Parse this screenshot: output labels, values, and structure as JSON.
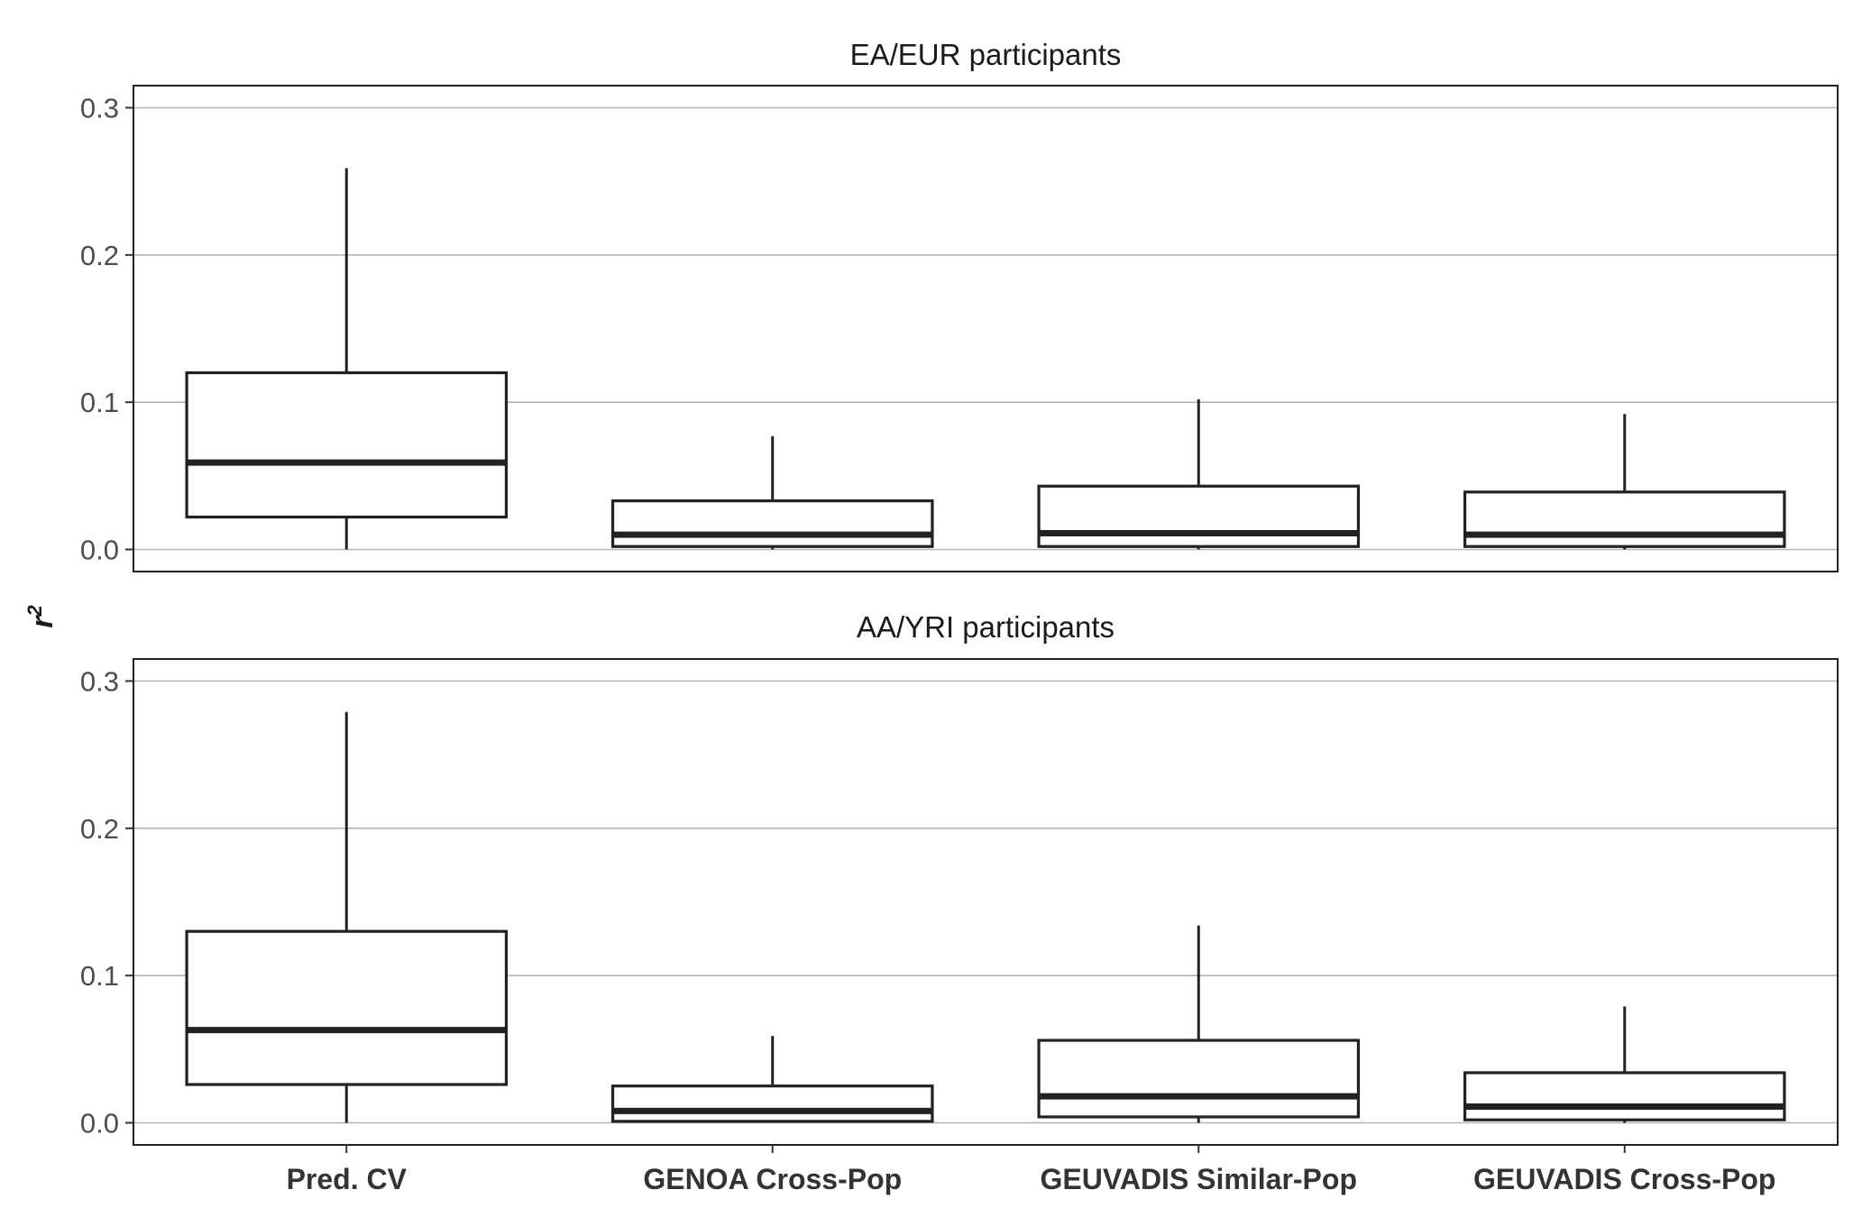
{
  "chart_data": {
    "type": "boxplot",
    "ylabel": "r",
    "ylabel_superscript": "2",
    "categories": [
      "Pred. CV",
      "GENOA Cross-Pop",
      "GEUVADIS Similar-Pop",
      "GEUVADIS Cross-Pop"
    ],
    "yticks": [
      "0.0",
      "0.1",
      "0.2",
      "0.3"
    ],
    "ylim": [
      -0.015,
      0.315
    ],
    "grid": "horizontal",
    "panels": [
      {
        "title": "EA/EUR participants",
        "boxes": [
          {
            "category": "Pred. CV",
            "min": 0.0,
            "q1": 0.022,
            "median": 0.059,
            "q3": 0.12,
            "max": 0.259
          },
          {
            "category": "GENOA Cross-Pop",
            "min": 0.0,
            "q1": 0.002,
            "median": 0.01,
            "q3": 0.033,
            "max": 0.077
          },
          {
            "category": "GEUVADIS Similar-Pop",
            "min": 0.0,
            "q1": 0.002,
            "median": 0.011,
            "q3": 0.043,
            "max": 0.102
          },
          {
            "category": "GEUVADIS Cross-Pop",
            "min": 0.0,
            "q1": 0.002,
            "median": 0.01,
            "q3": 0.039,
            "max": 0.092
          }
        ]
      },
      {
        "title": "AA/YRI participants",
        "boxes": [
          {
            "category": "Pred. CV",
            "min": 0.0,
            "q1": 0.026,
            "median": 0.063,
            "q3": 0.13,
            "max": 0.279
          },
          {
            "category": "GENOA Cross-Pop",
            "min": 0.0,
            "q1": 0.001,
            "median": 0.008,
            "q3": 0.025,
            "max": 0.059
          },
          {
            "category": "GEUVADIS Similar-Pop",
            "min": 0.0,
            "q1": 0.004,
            "median": 0.018,
            "q3": 0.056,
            "max": 0.134
          },
          {
            "category": "GEUVADIS Cross-Pop",
            "min": 0.0,
            "q1": 0.002,
            "median": 0.011,
            "q3": 0.034,
            "max": 0.079
          }
        ]
      }
    ]
  },
  "colors": {
    "box_stroke": "#222222",
    "grid": "#b3b3b3",
    "panel_border": "#222222"
  }
}
